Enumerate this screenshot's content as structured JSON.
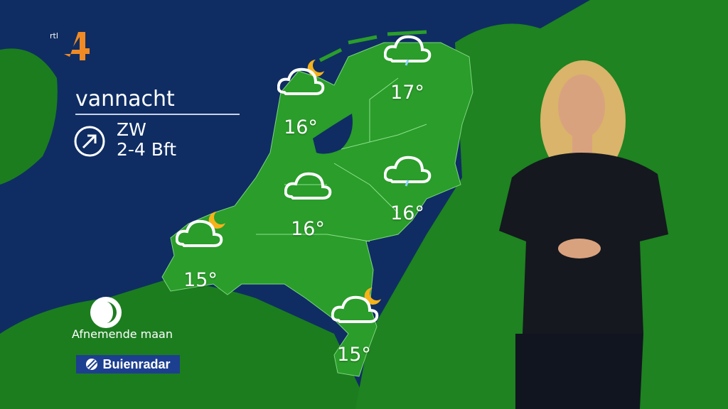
{
  "channel_logo": {
    "small_text": "rtl",
    "numeral": "4"
  },
  "forecast": {
    "period": "vannacht",
    "wind": {
      "direction": "ZW",
      "force": "2-4 Bft",
      "icon": "arrow-northeast-circle-icon"
    }
  },
  "moon": {
    "phase_label": "Afnemende maan",
    "icon": "waning-moon-icon"
  },
  "brand": {
    "name": "Buienradar"
  },
  "stations": [
    {
      "region": "noord-holland",
      "icon": "cloud-moon",
      "temp": "16°"
    },
    {
      "region": "groningen",
      "icon": "cloud-drizzle",
      "temp": "17°"
    },
    {
      "region": "utrecht",
      "icon": "cloud",
      "temp": "16°"
    },
    {
      "region": "overijssel",
      "icon": "cloud-drizzle",
      "temp": "16°"
    },
    {
      "region": "zeeland",
      "icon": "cloud-moon",
      "temp": "15°"
    },
    {
      "region": "limburg",
      "icon": "cloud-moon",
      "temp": "15°"
    }
  ],
  "colors": {
    "sea": "#0f2d63",
    "land": "#1c7d1f",
    "netherlands": "#2a9d2a",
    "moon": "#f6b21a",
    "brand": "#1d3f8f",
    "logo": "#f08a24"
  }
}
